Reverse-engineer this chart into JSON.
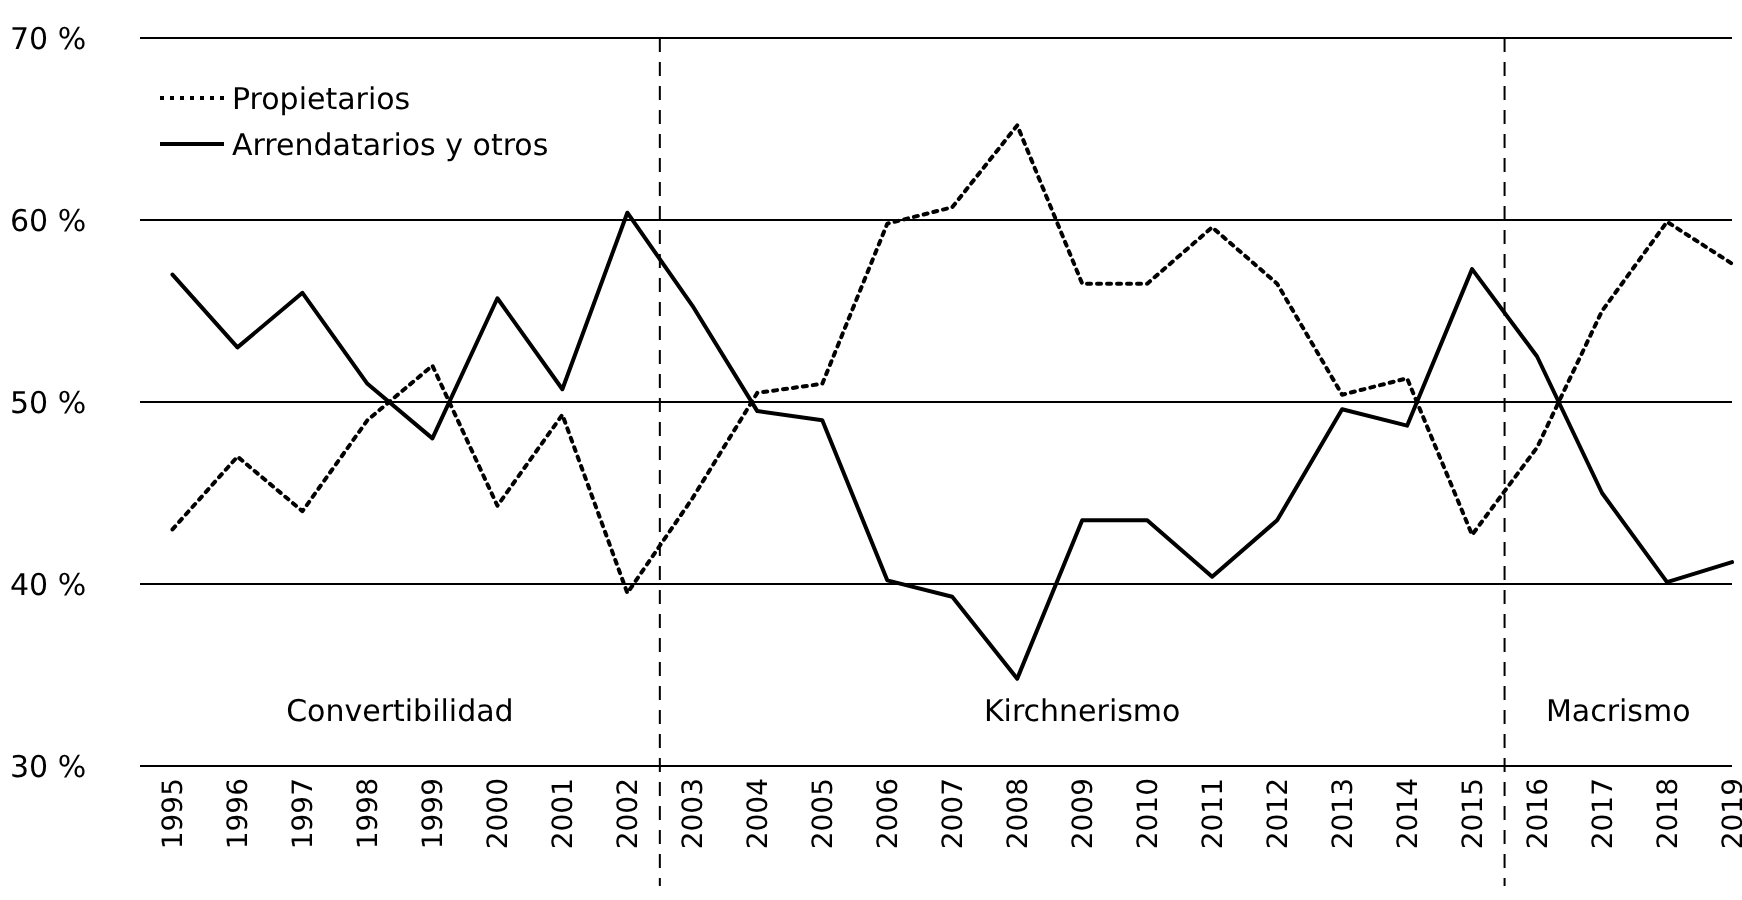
{
  "chart_data": {
    "type": "line",
    "x": [
      1995,
      1996,
      1997,
      1998,
      1999,
      2000,
      2001,
      2002,
      2003,
      2004,
      2005,
      2006,
      2007,
      2008,
      2009,
      2010,
      2011,
      2012,
      2013,
      2014,
      2015,
      2016,
      2017,
      2018,
      2019
    ],
    "series": [
      {
        "name": "Propietarios",
        "color": "#000000",
        "line_style": "dotted",
        "values": [
          43,
          47,
          44,
          49,
          52,
          44.3,
          49.3,
          39.5,
          44.7,
          50.5,
          51,
          59.8,
          60.7,
          65.2,
          56.5,
          56.5,
          59.6,
          56.5,
          50.4,
          51.3,
          42.7,
          47.5,
          55,
          59.9,
          57.6
        ]
      },
      {
        "name": "Arrendatarios y otros",
        "color": "#000000",
        "line_style": "solid",
        "values": [
          57,
          53,
          56,
          51,
          48,
          55.7,
          50.7,
          60.4,
          55.3,
          49.5,
          49,
          40.2,
          39.3,
          34.8,
          43.5,
          43.5,
          40.4,
          43.5,
          49.6,
          48.7,
          57.3,
          52.5,
          45,
          40.1,
          41.2
        ]
      }
    ],
    "xlim": [
      1994.5,
      2019
    ],
    "xticks": [
      1995,
      1996,
      1997,
      1998,
      1999,
      2000,
      2001,
      2002,
      2003,
      2004,
      2005,
      2006,
      2007,
      2008,
      2009,
      2010,
      2011,
      2012,
      2013,
      2014,
      2015,
      2016,
      2017,
      2018,
      2019
    ],
    "ylim": [
      30,
      70
    ],
    "yticks": [
      {
        "value": 30,
        "label": "30 %"
      },
      {
        "value": 40,
        "label": "40 %"
      },
      {
        "value": 50,
        "label": "50 %"
      },
      {
        "value": 60,
        "label": "60 %"
      },
      {
        "value": 70,
        "label": "70 %"
      }
    ],
    "grid": "y",
    "legend": "top left",
    "ref_lines": [
      {
        "axis": "x",
        "value": 2002.5,
        "line_style": "dashed"
      },
      {
        "axis": "x",
        "value": 2015.5,
        "line_style": "dashed"
      }
    ],
    "annotations": [
      "Convertibilidad",
      "Kirchnerismo",
      "Macrismo"
    ]
  }
}
